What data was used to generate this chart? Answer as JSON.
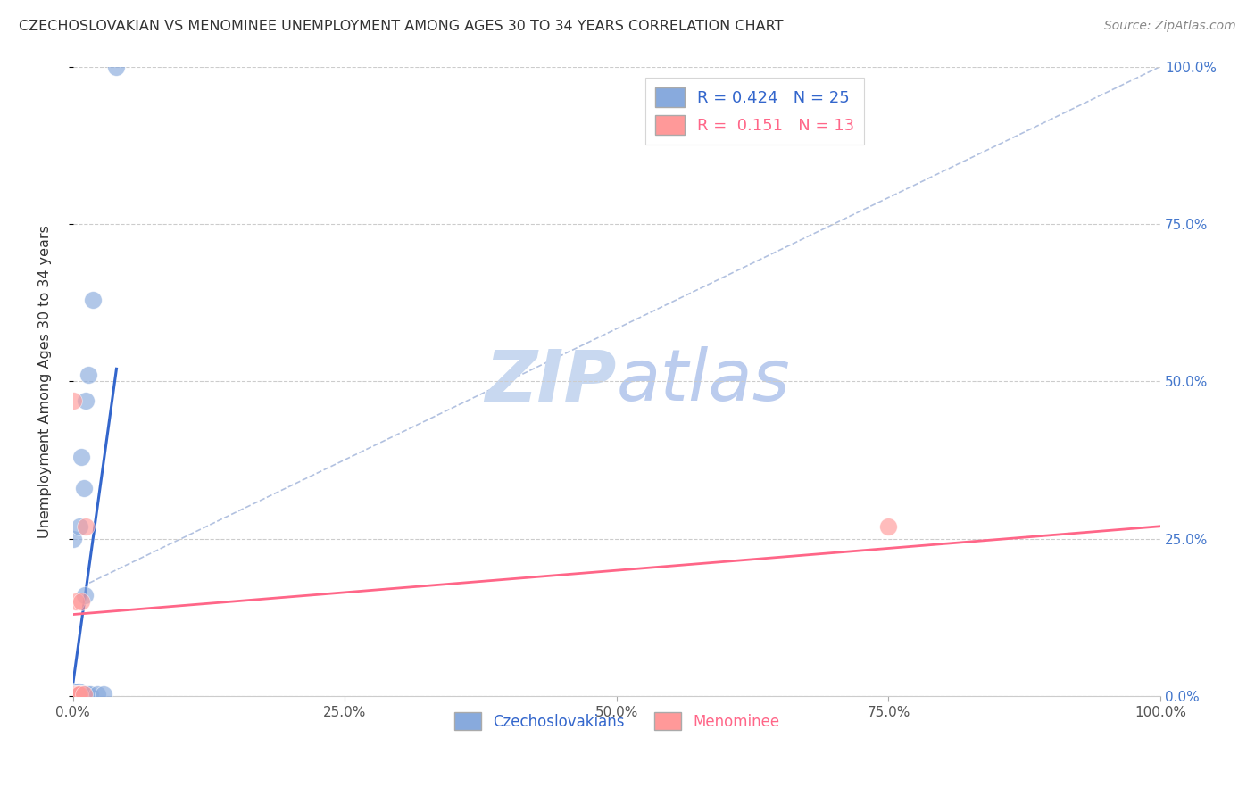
{
  "title": "CZECHOSLOVAKIAN VS MENOMINEE UNEMPLOYMENT AMONG AGES 30 TO 34 YEARS CORRELATION CHART",
  "source": "Source: ZipAtlas.com",
  "ylabel": "Unemployment Among Ages 30 to 34 years",
  "xlim": [
    0.0,
    1.0
  ],
  "ylim": [
    0.0,
    1.0
  ],
  "xticks": [
    0.0,
    0.25,
    0.5,
    0.75,
    1.0
  ],
  "xticklabels": [
    "0.0%",
    "25.0%",
    "50.0%",
    "75.0%",
    "100.0%"
  ],
  "yticks_right": [
    0.0,
    0.25,
    0.5,
    0.75,
    1.0
  ],
  "yticklabels_right": [
    "0.0%",
    "25.0%",
    "50.0%",
    "75.0%",
    "100.0%"
  ],
  "legend_r1": "R = 0.424",
  "legend_n1": "N = 25",
  "legend_r2": "R =  0.151",
  "legend_n2": "N = 13",
  "blue_scatter_color": "#88AADD",
  "pink_scatter_color": "#FF9999",
  "blue_line_color": "#3366CC",
  "pink_line_color": "#FF6688",
  "dashed_line_color": "#AABBDD",
  "watermark_color": "#C8D8F0",
  "czecho_points_x": [
    0.0,
    0.0,
    0.0,
    0.0,
    0.0,
    0.003,
    0.004,
    0.005,
    0.005,
    0.006,
    0.006,
    0.007,
    0.008,
    0.009,
    0.01,
    0.01,
    0.011,
    0.012,
    0.013,
    0.014,
    0.016,
    0.018,
    0.022,
    0.028,
    0.04
  ],
  "czecho_points_y": [
    0.0,
    0.003,
    0.005,
    0.008,
    0.25,
    0.0,
    0.003,
    0.003,
    0.008,
    0.003,
    0.27,
    0.003,
    0.38,
    0.003,
    0.003,
    0.33,
    0.16,
    0.47,
    0.003,
    0.51,
    0.003,
    0.63,
    0.003,
    0.003,
    1.0
  ],
  "menominee_points_x": [
    0.0,
    0.0,
    0.0,
    0.002,
    0.003,
    0.003,
    0.004,
    0.005,
    0.006,
    0.008,
    0.01,
    0.012,
    0.75
  ],
  "menominee_points_y": [
    0.0,
    0.003,
    0.47,
    0.003,
    0.003,
    0.15,
    0.003,
    0.003,
    0.003,
    0.15,
    0.003,
    0.27,
    0.27
  ],
  "czecho_line_x0": 0.0,
  "czecho_line_x1": 0.04,
  "czecho_line_y0": 0.02,
  "czecho_line_y1": 0.52,
  "menominee_line_x0": 0.0,
  "menominee_line_x1": 1.0,
  "menominee_line_y0": 0.13,
  "menominee_line_y1": 0.27,
  "dashed_line_x0": 0.015,
  "dashed_line_x1": 1.0,
  "dashed_line_y0": 0.18,
  "dashed_line_y1": 1.0,
  "background_color": "#FFFFFF",
  "grid_color": "#CCCCCC"
}
